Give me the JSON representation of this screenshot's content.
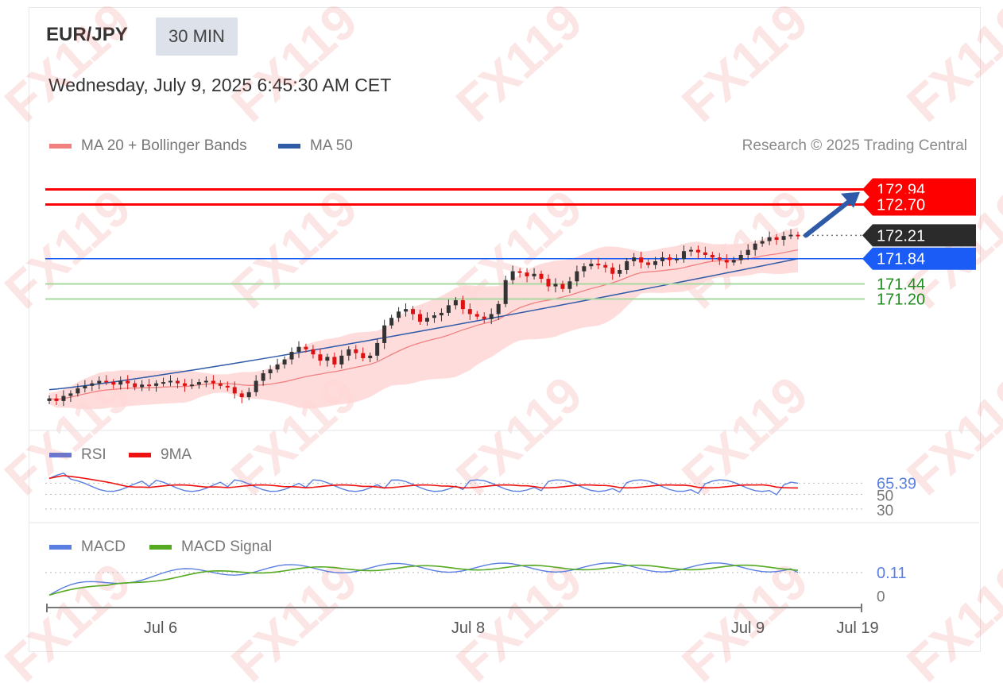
{
  "header": {
    "symbol": "EUR/JPY",
    "timeframe": "30 MIN",
    "datetime": "Wednesday, July 9, 2025 6:45:30 AM CET"
  },
  "legend": {
    "ma20": "MA 20 + Bollinger Bands",
    "ma50": "MA 50",
    "rsi": "RSI",
    "rsi_ma": "9MA",
    "macd": "MACD",
    "macd_signal": "MACD Signal"
  },
  "credit": "Research © 2025 Trading Central",
  "watermark": "FX119",
  "colors": {
    "resistance": "#ff0000",
    "pivot": "#1a5cf5",
    "support": "#1e8c1e",
    "last_price": "#2b2b2b",
    "ma50": "#2f5aa8",
    "ma20": "#f08080",
    "bands_fill": "#ffd6d6",
    "rsi": "#5b7fe0",
    "rsi_ma": "#ee1111",
    "macd": "#5b7fe0",
    "macd_signal": "#55aa22",
    "up_candle": "#333333",
    "down_candle": "#dd1111"
  },
  "chart_data": [
    {
      "type": "candlestick",
      "x_ticks": [
        "Jul 6",
        "Jul 8",
        "Jul 9",
        "Jul 19"
      ],
      "levels": [
        {
          "label": "172.94",
          "value": 172.94,
          "kind": "resistance"
        },
        {
          "label": "172.70",
          "value": 172.7,
          "kind": "resistance"
        },
        {
          "label": "172.21",
          "value": 172.21,
          "kind": "last"
        },
        {
          "label": "171.84",
          "value": 171.84,
          "kind": "pivot"
        },
        {
          "label": "171.44",
          "value": 171.44,
          "kind": "support"
        },
        {
          "label": "171.20",
          "value": 171.2,
          "kind": "support"
        }
      ],
      "y_range": [
        169.2,
        173.3
      ],
      "close": [
        169.62,
        169.58,
        169.66,
        169.7,
        169.78,
        169.82,
        169.86,
        169.9,
        169.88,
        169.84,
        169.9,
        169.86,
        169.8,
        169.84,
        169.82,
        169.86,
        169.88,
        169.9,
        169.86,
        169.82,
        169.84,
        169.88,
        169.9,
        169.86,
        169.82,
        169.8,
        169.7,
        169.64,
        169.72,
        169.9,
        170.02,
        170.08,
        170.16,
        170.24,
        170.36,
        170.44,
        170.4,
        170.32,
        170.22,
        170.28,
        170.16,
        170.3,
        170.4,
        170.34,
        170.26,
        170.3,
        170.5,
        170.78,
        170.9,
        171.0,
        171.04,
        170.96,
        170.84,
        170.9,
        170.94,
        170.98,
        171.1,
        171.18,
        171.04,
        170.96,
        170.92,
        170.88,
        170.96,
        171.12,
        171.5,
        171.64,
        171.62,
        171.56,
        171.6,
        171.52,
        171.4,
        171.44,
        171.36,
        171.48,
        171.64,
        171.72,
        171.76,
        171.74,
        171.7,
        171.6,
        171.66,
        171.8,
        171.86,
        171.78,
        171.74,
        171.8,
        171.86,
        171.82,
        171.84,
        171.96,
        171.98,
        171.94,
        171.9,
        171.86,
        171.82,
        171.78,
        171.82,
        171.9,
        171.98,
        172.08,
        172.12,
        172.18,
        172.14,
        172.2,
        172.22,
        172.21
      ],
      "note_arrow": "projection toward 172.94",
      "ma20_last": 171.98,
      "ma50_last": 171.84
    },
    {
      "type": "line",
      "name": "RSI panel",
      "reference_levels": [
        50,
        30
      ],
      "last_label": "65.39",
      "rsi_last": 65.39
    },
    {
      "type": "line",
      "name": "MACD panel",
      "reference_levels": [
        0
      ],
      "last_label": "0.11",
      "macd_last": 0.11
    }
  ]
}
